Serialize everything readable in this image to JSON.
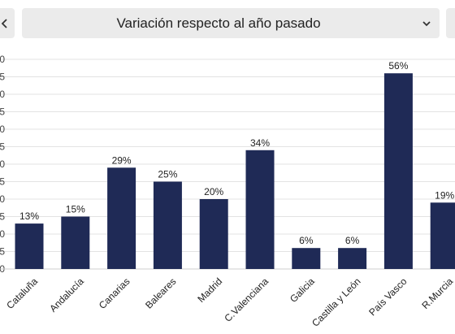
{
  "selector": {
    "label": "Variación respecto al año pasado"
  },
  "icons": {
    "prev": "chevron-left-icon",
    "next": "chevron-right-icon",
    "dropdown": "chevron-down-icon"
  },
  "colors": {
    "bar": "#1f2a56",
    "grid": "#e3e3e3",
    "text": "#222222",
    "control_bg": "#ebebeb"
  },
  "chart_data": {
    "type": "bar",
    "categories": [
      "Cataluña",
      "Andalucía",
      "Canarias",
      "Baleares",
      "Madrid",
      "C.Valenciana",
      "Galicia",
      "Castilla y León",
      "País Vasco",
      "R.Murcia"
    ],
    "values": [
      13,
      15,
      29,
      25,
      20,
      34,
      6,
      6,
      56,
      19
    ],
    "value_labels": [
      "13%",
      "15%",
      "29%",
      "25%",
      "20%",
      "34%",
      "6%",
      "6%",
      "56%",
      "19%"
    ],
    "ylim": [
      0,
      60
    ],
    "grid": true,
    "legend": "none"
  }
}
